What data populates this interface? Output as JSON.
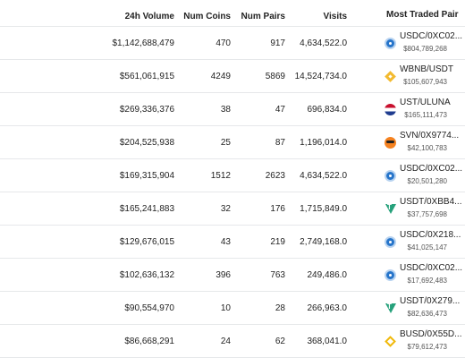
{
  "header": {
    "volume": "24h Volume",
    "coins": "Num Coins",
    "pairs": "Num Pairs",
    "visits": "Visits",
    "pair": "Most Traded Pair"
  },
  "rows": [
    {
      "volume": "$1,142,688,479",
      "coins": "470",
      "pairs": "917",
      "visits": "4,634,522.0",
      "pair": "USDC/0XC02...",
      "pair_volume": "$804,789,268",
      "icon": "usdc-icon"
    },
    {
      "volume": "$561,061,915",
      "coins": "4249",
      "pairs": "5869",
      "visits": "14,524,734.0",
      "pair": "WBNB/USDT",
      "pair_volume": "$105,607,943",
      "icon": "bnb-icon"
    },
    {
      "volume": "$269,336,376",
      "coins": "38",
      "pairs": "47",
      "visits": "696,834.0",
      "pair": "UST/ULUNA",
      "pair_volume": "$165,111,473",
      "icon": "ust-icon"
    },
    {
      "volume": "$204,525,938",
      "coins": "25",
      "pairs": "87",
      "visits": "1,196,014.0",
      "pair": "SVN/0X9774...",
      "pair_volume": "$42,100,783",
      "icon": "svn-icon"
    },
    {
      "volume": "$169,315,904",
      "coins": "1512",
      "pairs": "2623",
      "visits": "4,634,522.0",
      "pair": "USDC/0XC02...",
      "pair_volume": "$20,501,280",
      "icon": "usdc-icon"
    },
    {
      "volume": "$165,241,883",
      "coins": "32",
      "pairs": "176",
      "visits": "1,715,849.0",
      "pair": "USDT/0XBB4...",
      "pair_volume": "$37,757,698",
      "icon": "usdt-icon"
    },
    {
      "volume": "$129,676,015",
      "coins": "43",
      "pairs": "219",
      "visits": "2,749,168.0",
      "pair": "USDC/0X218...",
      "pair_volume": "$41,025,147",
      "icon": "usdc-icon"
    },
    {
      "volume": "$102,636,132",
      "coins": "396",
      "pairs": "763",
      "visits": "249,486.0",
      "pair": "USDC/0XC02...",
      "pair_volume": "$17,692,483",
      "icon": "usdc-icon"
    },
    {
      "volume": "$90,554,970",
      "coins": "10",
      "pairs": "28",
      "visits": "266,963.0",
      "pair": "USDT/0X279...",
      "pair_volume": "$82,636,473",
      "icon": "usdt-icon"
    },
    {
      "volume": "$86,668,291",
      "coins": "24",
      "pairs": "62",
      "visits": "368,041.0",
      "pair": "BUSD/0X55D...",
      "pair_volume": "$79,612,473",
      "icon": "busd-icon"
    }
  ]
}
